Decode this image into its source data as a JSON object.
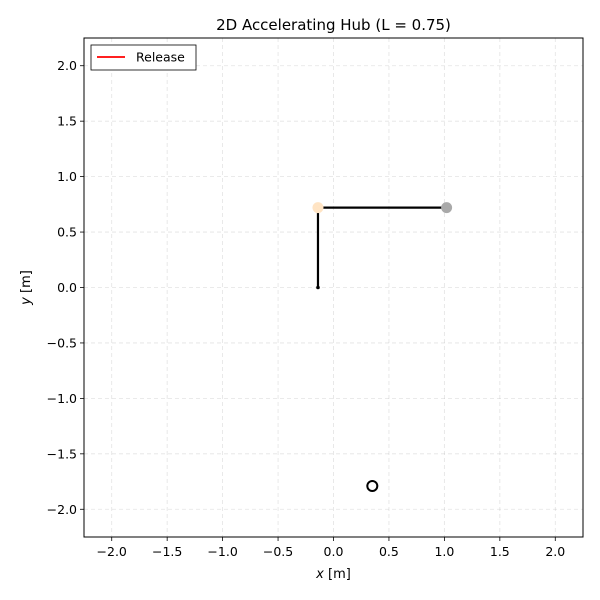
{
  "chart_data": {
    "type": "scatter",
    "title": "2D Accelerating Hub (L = 0.75)",
    "xlabel_var": "x",
    "xlabel_unit": " [m]",
    "ylabel_var": "y",
    "ylabel_unit": " [m]",
    "xlim": [
      -2.25,
      2.25
    ],
    "ylim": [
      -2.25,
      2.25
    ],
    "xticks": [
      -2.0,
      -1.5,
      -1.0,
      -0.5,
      0.0,
      0.5,
      1.0,
      1.5,
      2.0
    ],
    "yticks": [
      -2.0,
      -1.5,
      -1.0,
      -0.5,
      0.0,
      0.5,
      1.0,
      1.5,
      2.0
    ],
    "xtick_labels": [
      "−2.0",
      "−1.5",
      "−1.0",
      "−0.5",
      "0.0",
      "0.5",
      "1.0",
      "1.5",
      "2.0"
    ],
    "ytick_labels": [
      "−2.0",
      "−1.5",
      "−1.0",
      "−0.5",
      "0.0",
      "0.5",
      "1.0",
      "1.5",
      "2.0"
    ],
    "grid": true,
    "legend": {
      "placement": "top-left",
      "entries": [
        {
          "label": "Release",
          "color": "#ff0000"
        }
      ]
    },
    "segments": [
      {
        "name": "hub-arm",
        "x": [
          -0.14,
          -0.14
        ],
        "y": [
          0.0,
          0.72
        ],
        "color": "#000000"
      },
      {
        "name": "link-arm",
        "x": [
          -0.14,
          1.02
        ],
        "y": [
          0.72,
          0.72
        ],
        "color": "#000000"
      }
    ],
    "points": [
      {
        "name": "hub-point",
        "x": -0.14,
        "y": 0.0,
        "color": "#000000",
        "style": "small-dot"
      },
      {
        "name": "joint-point",
        "x": -0.14,
        "y": 0.72,
        "color": "#ffe4c4",
        "style": "filled"
      },
      {
        "name": "tip-point",
        "x": 1.02,
        "y": 0.72,
        "color": "#a9a9a9",
        "style": "filled"
      },
      {
        "name": "target-point",
        "x": 0.35,
        "y": -1.79,
        "color": "#000000",
        "style": "hollow"
      }
    ]
  }
}
